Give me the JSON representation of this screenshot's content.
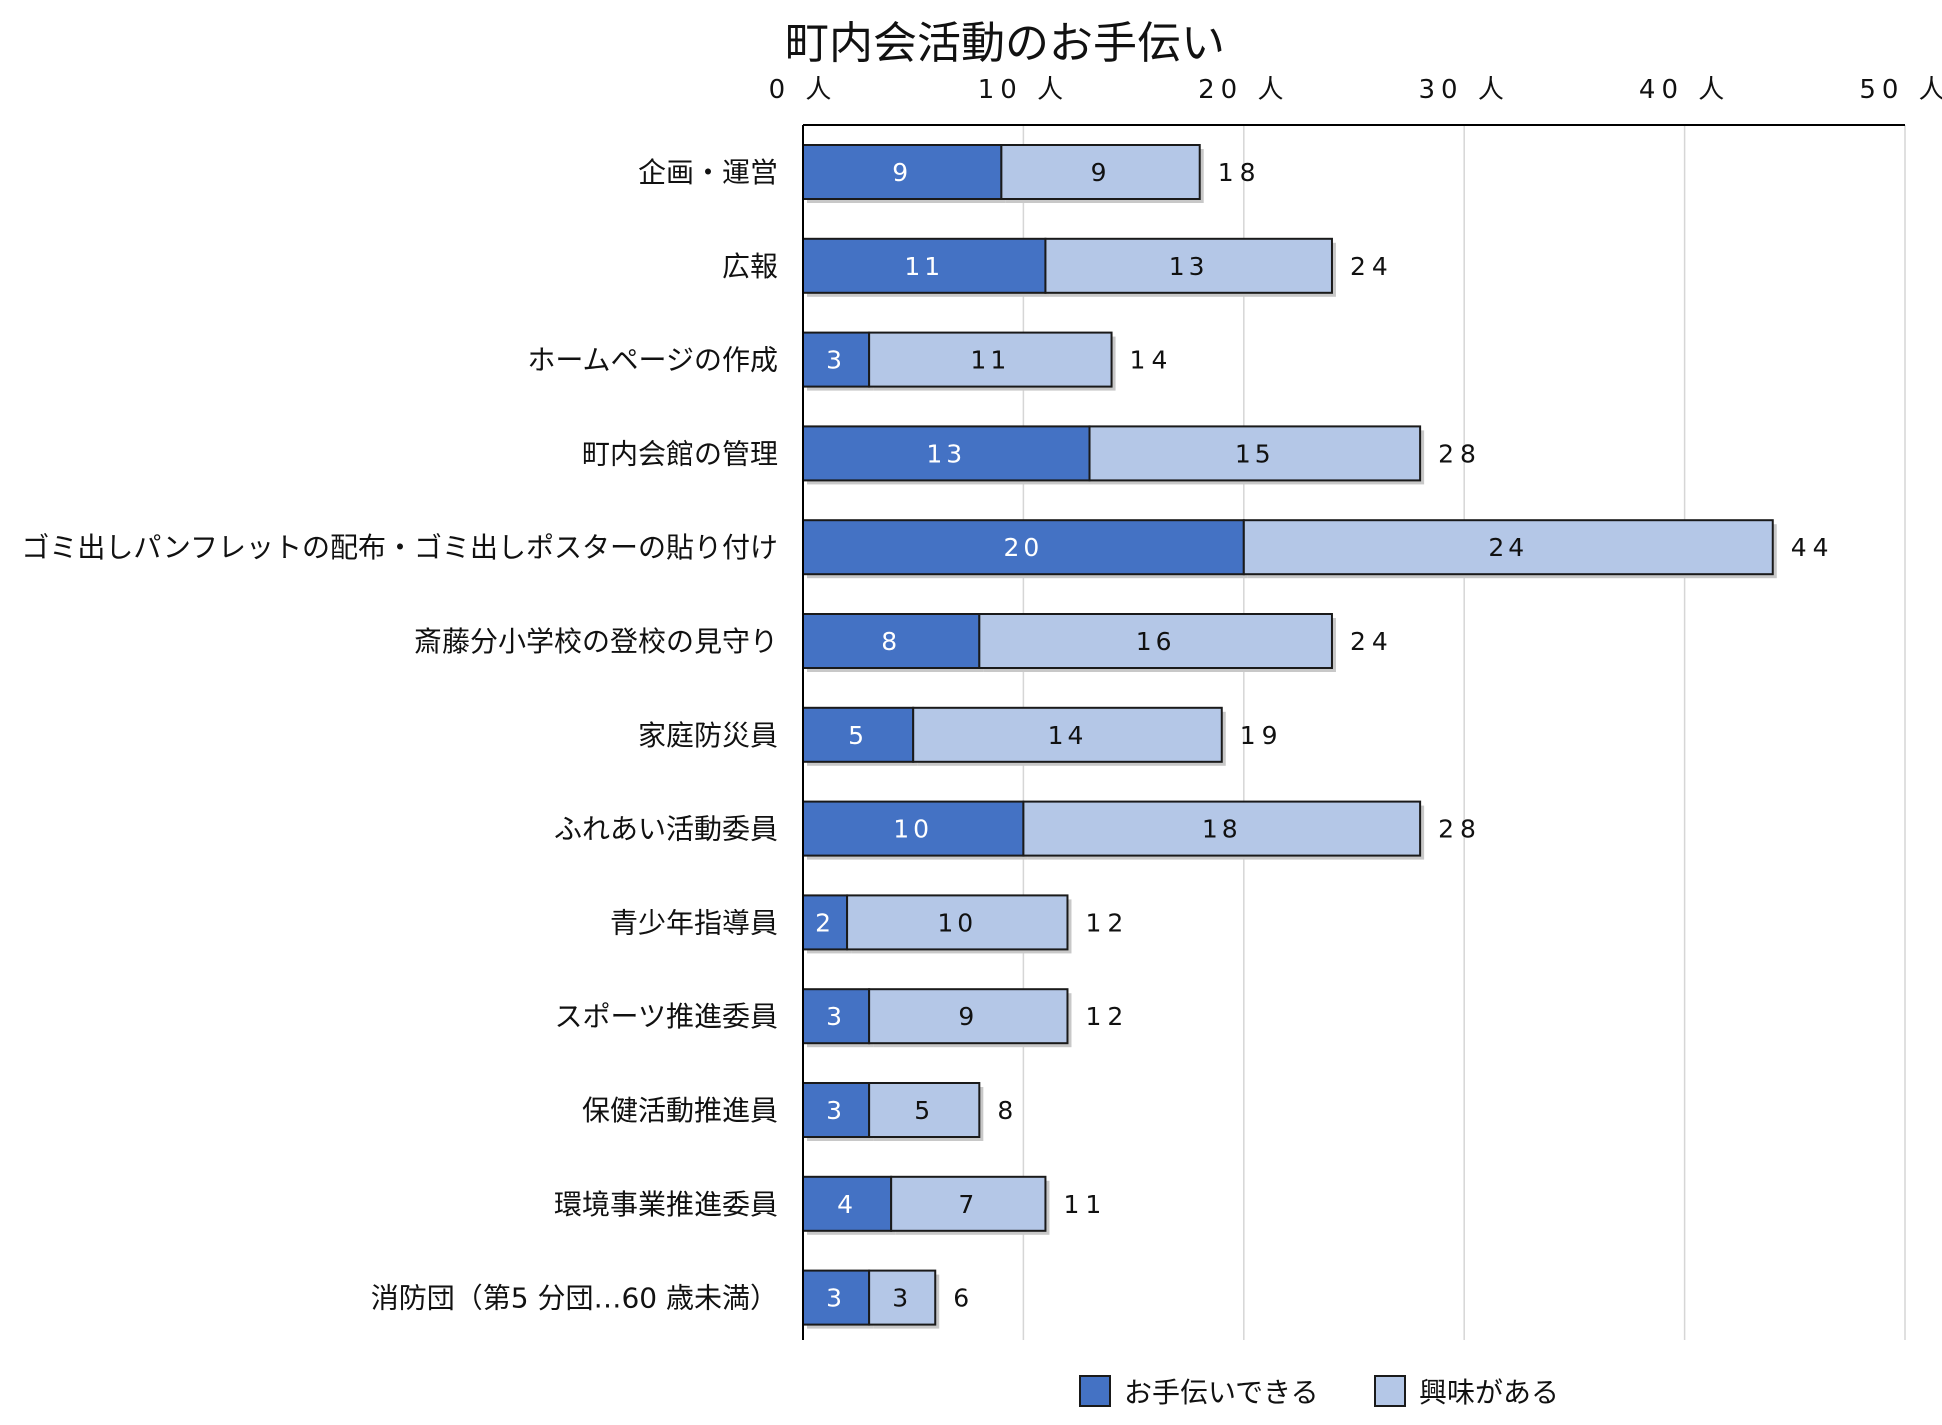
{
  "chart_data": {
    "type": "bar",
    "orientation": "horizontal",
    "stacked": true,
    "title": "町内会活動のお手伝い",
    "x_ticks": [
      "0 人",
      "10 人",
      "20 人",
      "30 人",
      "40 人",
      "50 人"
    ],
    "xlim": [
      0,
      50
    ],
    "x_axis_position": "top",
    "grid": true,
    "legend_position": "bottom",
    "categories": [
      "企画・運営",
      "広報",
      "ホームページの作成",
      "町内会館の管理",
      "ゴミ出しパンフレットの配布・ゴミ出しポスターの貼り付け",
      "斎藤分小学校の登校の見守り",
      "家庭防災員",
      "ふれあい活動委員",
      "青少年指導員",
      "スポーツ推進委員",
      "保健活動推進員",
      "環境事業推進委員",
      "消防団（第5 分団…60 歳未満）"
    ],
    "series": [
      {
        "name": "お手伝いできる",
        "color": "#4472c4",
        "label_color": "#ffffff",
        "values": [
          9,
          11,
          3,
          13,
          20,
          8,
          5,
          10,
          2,
          3,
          3,
          4,
          3
        ]
      },
      {
        "name": "興味がある",
        "color": "#b4c7e7",
        "label_color": "#111111",
        "values": [
          9,
          13,
          11,
          15,
          24,
          16,
          14,
          18,
          10,
          9,
          5,
          7,
          3
        ]
      }
    ],
    "totals": [
      18,
      24,
      14,
      28,
      44,
      24,
      19,
      28,
      12,
      12,
      8,
      11,
      6
    ]
  }
}
